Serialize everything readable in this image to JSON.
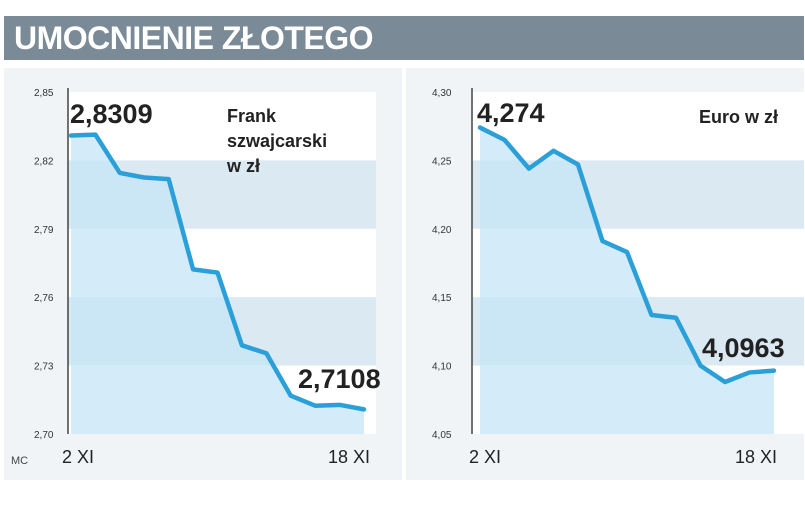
{
  "title": "UMOCNIENIE ZŁOTEGO",
  "credit": "MC",
  "colors": {
    "title_bar": "#7a8a96",
    "panel_bg": "#f1f4f7",
    "line": "#2a9fd8",
    "area_fill": "#c6e6f7",
    "band": "#dbe9f3"
  },
  "chart_data": [
    {
      "type": "line",
      "title": "Frank szwajcarski w zł",
      "title_lines": [
        "Frank",
        "szwajcarski",
        "w zł"
      ],
      "x_labels": [
        "2 XI",
        "18 XI"
      ],
      "ylim": [
        2.7,
        2.85
      ],
      "y_ticks": [
        "2,85",
        "2,82",
        "2,79",
        "2,76",
        "2,73",
        "2,70"
      ],
      "y_tick_values": [
        2.85,
        2.82,
        2.79,
        2.76,
        2.73,
        2.7
      ],
      "start_label": "2,8309",
      "end_label": "2,7108",
      "values": [
        2.8309,
        2.8313,
        2.8145,
        2.8125,
        2.8118,
        2.7722,
        2.7708,
        2.7389,
        2.7354,
        2.7168,
        2.7124,
        2.7128,
        2.7108
      ]
    },
    {
      "type": "line",
      "title": "Euro w zł",
      "title_lines": [
        "Euro w zł"
      ],
      "x_labels": [
        "2 XI",
        "18 XI"
      ],
      "ylim": [
        4.05,
        4.3
      ],
      "y_ticks": [
        "4,30",
        "4,25",
        "4,20",
        "4,15",
        "4,10",
        "4,05"
      ],
      "y_tick_values": [
        4.3,
        4.25,
        4.2,
        4.15,
        4.1,
        4.05
      ],
      "start_label": "4,274",
      "end_label": "4,0963",
      "values": [
        4.274,
        4.265,
        4.244,
        4.257,
        4.247,
        4.191,
        4.183,
        4.137,
        4.135,
        4.1,
        4.088,
        4.095,
        4.0963
      ]
    }
  ]
}
